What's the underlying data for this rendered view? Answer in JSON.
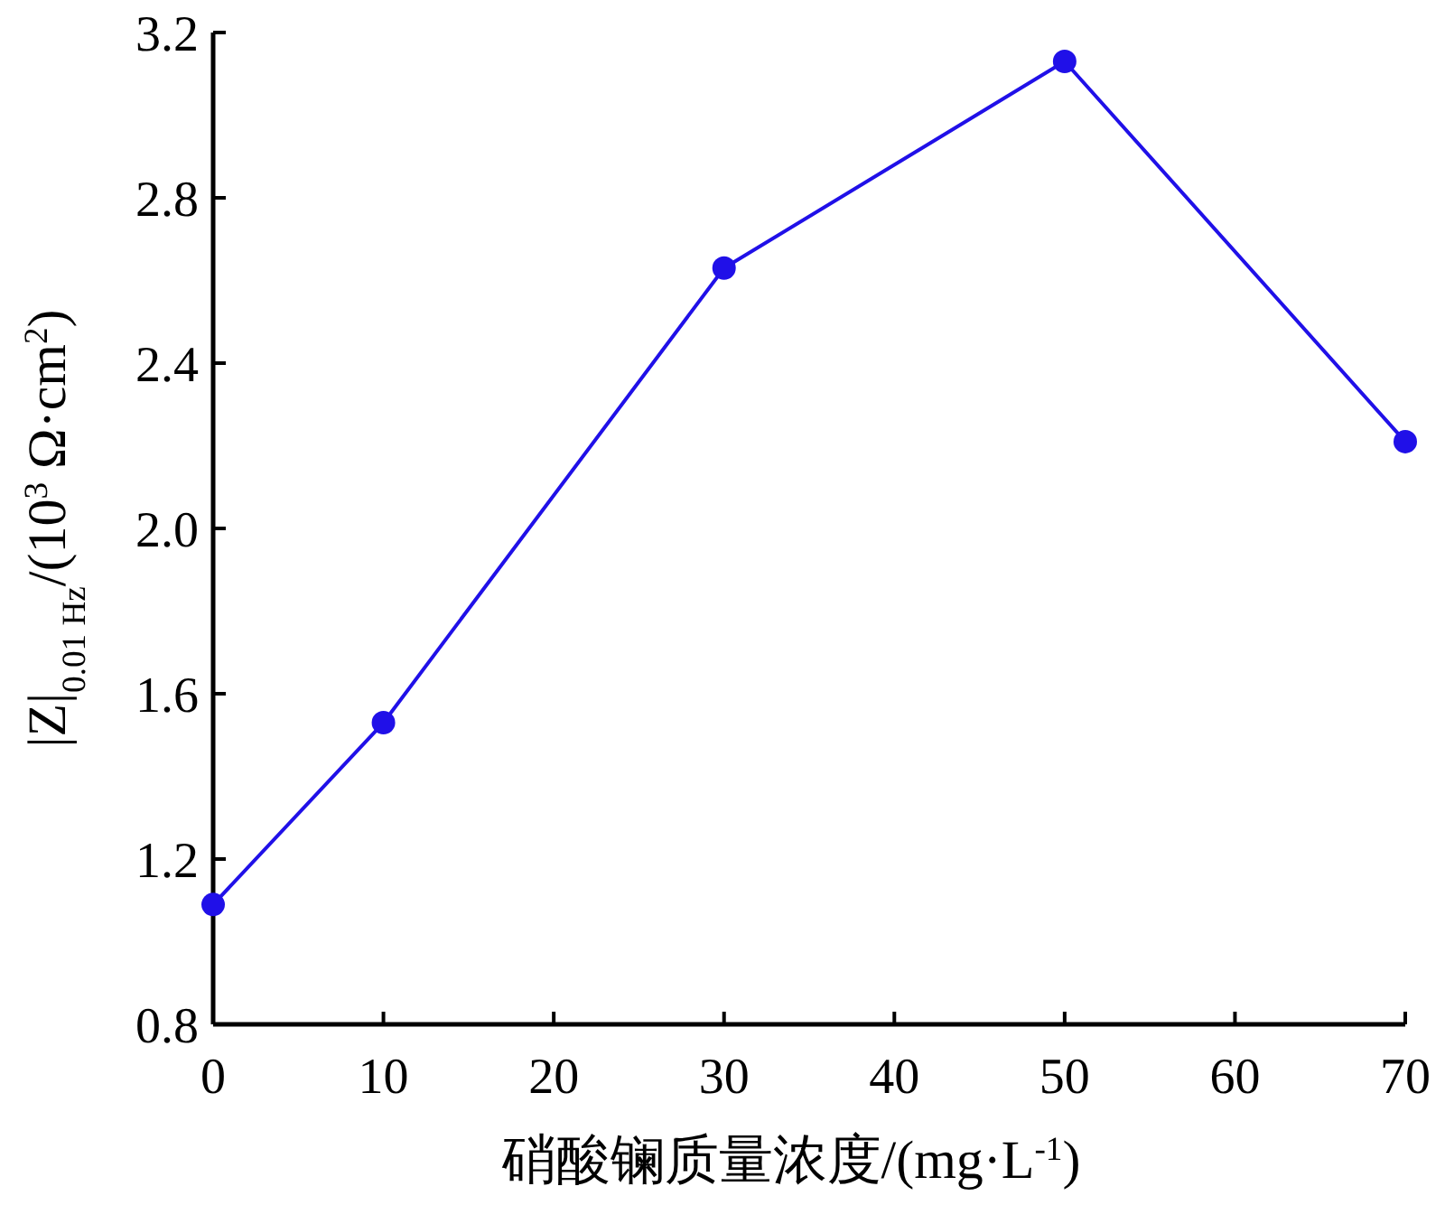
{
  "chart_data": {
    "type": "line",
    "xlabel": "硝酸镧质量浓度/(mg·L$^{-1}$)",
    "ylabel": "|Z|$_{0.01 Hz}$/(10$^{3}$ Ω·cm$^{2}$)",
    "x": [
      0,
      10,
      30,
      50,
      70
    ],
    "series": [
      {
        "color": "#2010e8",
        "values": [
          1.09,
          1.53,
          2.63,
          3.13,
          2.21
        ]
      }
    ],
    "xlim": [
      0,
      70
    ],
    "xticks": [
      0,
      10,
      20,
      30,
      40,
      50,
      60,
      70
    ],
    "ylim": [
      0.8,
      3.2
    ],
    "yticks": [
      {
        "value": 0.8,
        "label": "0.8"
      },
      {
        "value": 1.2,
        "label": "1.2"
      },
      {
        "value": 1.6,
        "label": "1.6"
      },
      {
        "value": 2.0,
        "label": "2.0"
      },
      {
        "value": 2.4,
        "label": "2.4"
      },
      {
        "value": 2.8,
        "label": "2.8"
      },
      {
        "value": 3.2,
        "label": "3.2"
      }
    ],
    "marker": "circle",
    "line_style": "solid"
  }
}
